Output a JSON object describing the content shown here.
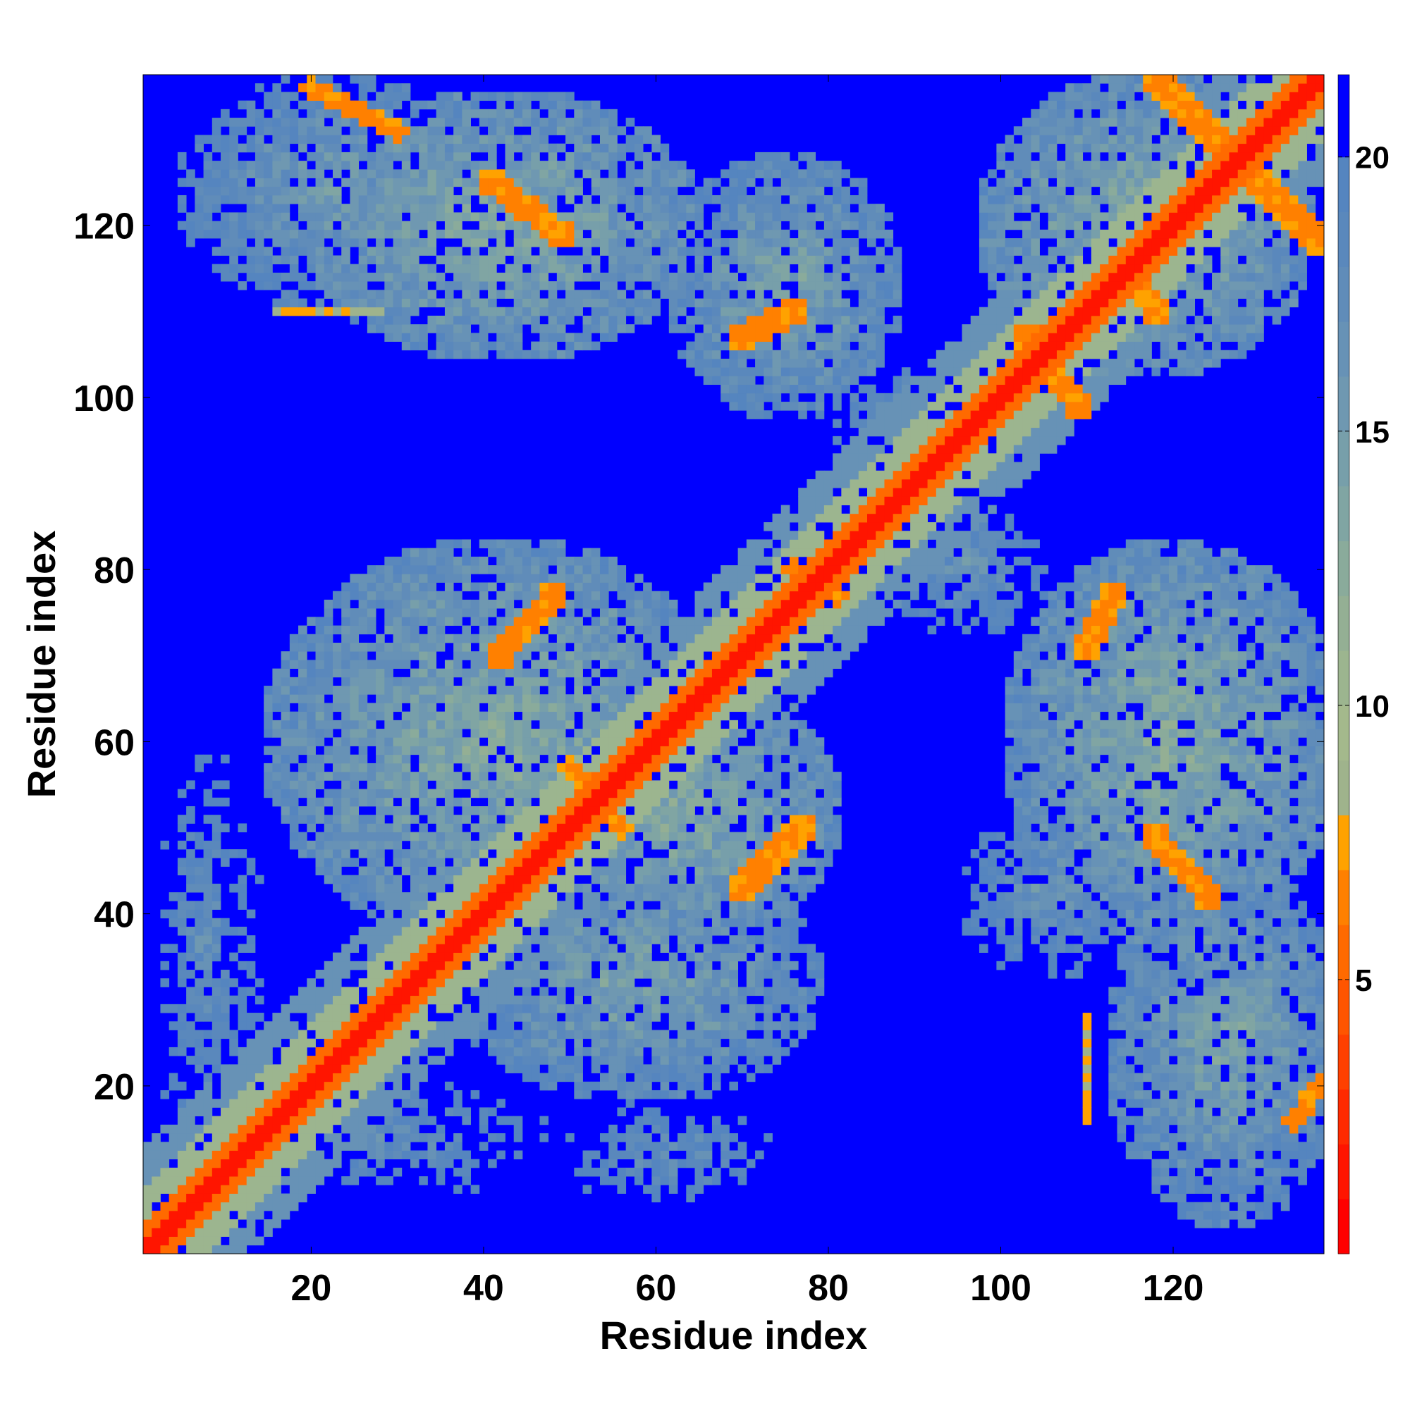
{
  "chart_data": {
    "type": "heatmap",
    "title": "",
    "xlabel": "Residue index",
    "ylabel": "Residue index",
    "n_residues": 137,
    "xlim": [
      0.5,
      137.5
    ],
    "ylim": [
      0.5,
      137.5
    ],
    "x_ticks": [
      20,
      40,
      60,
      80,
      100,
      120
    ],
    "y_ticks": [
      20,
      40,
      60,
      80,
      100,
      120
    ],
    "colorbar": {
      "range": [
        0,
        21.5
      ],
      "ticks": [
        5,
        10,
        15,
        20
      ],
      "levels": [
        {
          "min": 0,
          "max": 1,
          "color": "#ff0000"
        },
        {
          "min": 1,
          "max": 2,
          "color": "#ff1500"
        },
        {
          "min": 2,
          "max": 3,
          "color": "#ff2a00"
        },
        {
          "min": 3,
          "max": 4,
          "color": "#ff4000"
        },
        {
          "min": 4,
          "max": 5,
          "color": "#ff5500"
        },
        {
          "min": 5,
          "max": 6,
          "color": "#ff6a00"
        },
        {
          "min": 6,
          "max": 7,
          "color": "#ff8000"
        },
        {
          "min": 7,
          "max": 8,
          "color": "#ffa200"
        },
        {
          "min": 8,
          "max": 9,
          "color": "#9fb38c"
        },
        {
          "min": 9,
          "max": 10,
          "color": "#a4b98c"
        },
        {
          "min": 10,
          "max": 11,
          "color": "#9cb58f"
        },
        {
          "min": 11,
          "max": 12,
          "color": "#94af94"
        },
        {
          "min": 12,
          "max": 13,
          "color": "#8aab9b"
        },
        {
          "min": 13,
          "max": 14,
          "color": "#80a5a3"
        },
        {
          "min": 14,
          "max": 15,
          "color": "#779faa"
        },
        {
          "min": 15,
          "max": 16,
          "color": "#6f98b1"
        },
        {
          "min": 16,
          "max": 17,
          "color": "#6792b6"
        },
        {
          "min": 17,
          "max": 18,
          "color": "#608cb9"
        },
        {
          "min": 18,
          "max": 19,
          "color": "#5a88bc"
        },
        {
          "min": 19,
          "max": 20,
          "color": "#5585bf"
        },
        {
          "min": 20,
          "max": 21.5,
          "color": "#0000ff"
        }
      ]
    },
    "background_value": 21,
    "diagonal_bands": [
      {
        "from": [
          1,
          1
        ],
        "to": [
          137,
          137
        ],
        "value": 1,
        "width": 1.2
      },
      {
        "from": [
          1,
          1
        ],
        "to": [
          137,
          137
        ],
        "value": 5,
        "width": 2.5
      },
      {
        "from": [
          1,
          1
        ],
        "to": [
          137,
          137
        ],
        "value": 10,
        "width": 5
      },
      {
        "from": [
          1,
          1
        ],
        "to": [
          137,
          137
        ],
        "value": 16,
        "width": 9
      }
    ],
    "contact_bands": [
      {
        "from": [
          41,
          125
        ],
        "to": [
          49,
          119
        ],
        "value": 6,
        "width": 1.5
      },
      {
        "from": [
          70,
          107
        ],
        "to": [
          76,
          110
        ],
        "value": 6,
        "width": 1.5
      },
      {
        "from": [
          42,
          70
        ],
        "to": [
          48,
          77
        ],
        "value": 6,
        "width": 1.5
      },
      {
        "from": [
          70,
          43
        ],
        "to": [
          77,
          50
        ],
        "value": 6,
        "width": 1.5
      },
      {
        "from": [
          103,
          107
        ],
        "to": [
          109,
          99
        ],
        "value": 6,
        "width": 1.5
      },
      {
        "from": [
          110,
          71
        ],
        "to": [
          113,
          77
        ],
        "value": 6,
        "width": 1.5
      },
      {
        "from": [
          118,
          49
        ],
        "to": [
          124,
          42
        ],
        "value": 6,
        "width": 1.5
      },
      {
        "from": [
          118,
          137
        ],
        "to": [
          137,
          118
        ],
        "value": 6,
        "width": 1.5
      },
      {
        "from": [
          115,
          115
        ],
        "to": [
          118,
          110
        ],
        "value": 6,
        "width": 1.5
      },
      {
        "from": [
          76,
          80
        ],
        "to": [
          81,
          77
        ],
        "value": 6,
        "width": 1.2
      },
      {
        "from": [
          50,
          57
        ],
        "to": [
          56,
          50
        ],
        "value": 6,
        "width": 1.2
      },
      {
        "from": [
          20,
          136
        ],
        "to": [
          30,
          131
        ],
        "value": 6,
        "width": 1.2
      },
      {
        "from": [
          134,
          16
        ],
        "to": [
          137,
          20
        ],
        "value": 6,
        "width": 1.2
      },
      {
        "from": [
          16,
          110
        ],
        "to": [
          28,
          110
        ],
        "value": 7,
        "width": 0.8
      },
      {
        "from": [
          110,
          16
        ],
        "to": [
          110,
          28
        ],
        "value": 7,
        "width": 0.8
      }
    ],
    "medium_regions": [
      {
        "center": [
          42,
          120
        ],
        "radius": [
          24,
          16
        ],
        "value": 13
      },
      {
        "center": [
          22,
          124
        ],
        "radius": [
          18,
          14
        ],
        "value": 15
      },
      {
        "center": [
          75,
          113
        ],
        "radius": [
          14,
          16
        ],
        "value": 14
      },
      {
        "center": [
          117,
          120
        ],
        "radius": [
          20,
          18
        ],
        "value": 13
      },
      {
        "center": [
          92,
          97
        ],
        "radius": [
          12,
          8
        ],
        "value": 16
      },
      {
        "center": [
          42,
          60
        ],
        "radius": [
          28,
          24
        ],
        "value": 13
      },
      {
        "center": [
          62,
          52
        ],
        "radius": [
          20,
          16
        ],
        "value": 13
      },
      {
        "center": [
          58,
          32
        ],
        "radius": [
          22,
          14
        ],
        "value": 14
      },
      {
        "center": [
          28,
          14
        ],
        "radius": [
          22,
          8
        ],
        "value": 17
      },
      {
        "center": [
          62,
          12
        ],
        "radius": [
          14,
          7
        ],
        "value": 17
      },
      {
        "center": [
          8,
          36
        ],
        "radius": [
          7,
          26
        ],
        "value": 17
      },
      {
        "center": [
          120,
          60
        ],
        "radius": [
          20,
          24
        ],
        "value": 13
      },
      {
        "center": [
          126,
          25
        ],
        "radius": [
          14,
          22
        ],
        "value": 14
      },
      {
        "center": [
          105,
          42
        ],
        "radius": [
          10,
          10
        ],
        "value": 16
      },
      {
        "center": [
          96,
          80
        ],
        "radius": [
          10,
          8
        ],
        "value": 16
      }
    ]
  }
}
